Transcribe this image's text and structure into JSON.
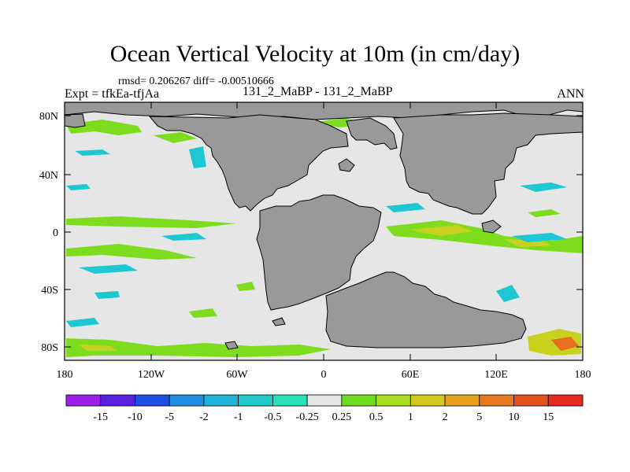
{
  "title": "Ocean Vertical Velocity at 10m (in cm/day)",
  "stats_text": "rmsd= 0.206267 diff= -0.00510666",
  "expt_text": "Expt = tfkEa-tfjAa",
  "runs_text": "131_2_MaBP - 131_2_MaBP",
  "period": "ANN",
  "lat_labels": [
    "80N",
    "40N",
    "0",
    "40S",
    "80S"
  ],
  "lon_labels": [
    "180",
    "120W",
    "60W",
    "0",
    "60E",
    "120E",
    "180"
  ],
  "colorbar": {
    "labels": [
      "-15",
      "-10",
      "-5",
      "-2",
      "-1",
      "-0.5",
      "-0.25",
      "0.25",
      "0.5",
      "1",
      "2",
      "5",
      "10",
      "15"
    ],
    "colors": [
      "#9b1fe8",
      "#5a22e0",
      "#1f4fe0",
      "#1e8fe0",
      "#1eb4d8",
      "#1ec8c8",
      "#2ae0b8",
      "#e6e6e6",
      "#6edc1e",
      "#a8dc1e",
      "#d2c81e",
      "#e6a01e",
      "#e6781e",
      "#e6501e",
      "#e6281e"
    ]
  },
  "colors": {
    "land": "#999999",
    "ocean_neutral": "#e6e6e6"
  }
}
